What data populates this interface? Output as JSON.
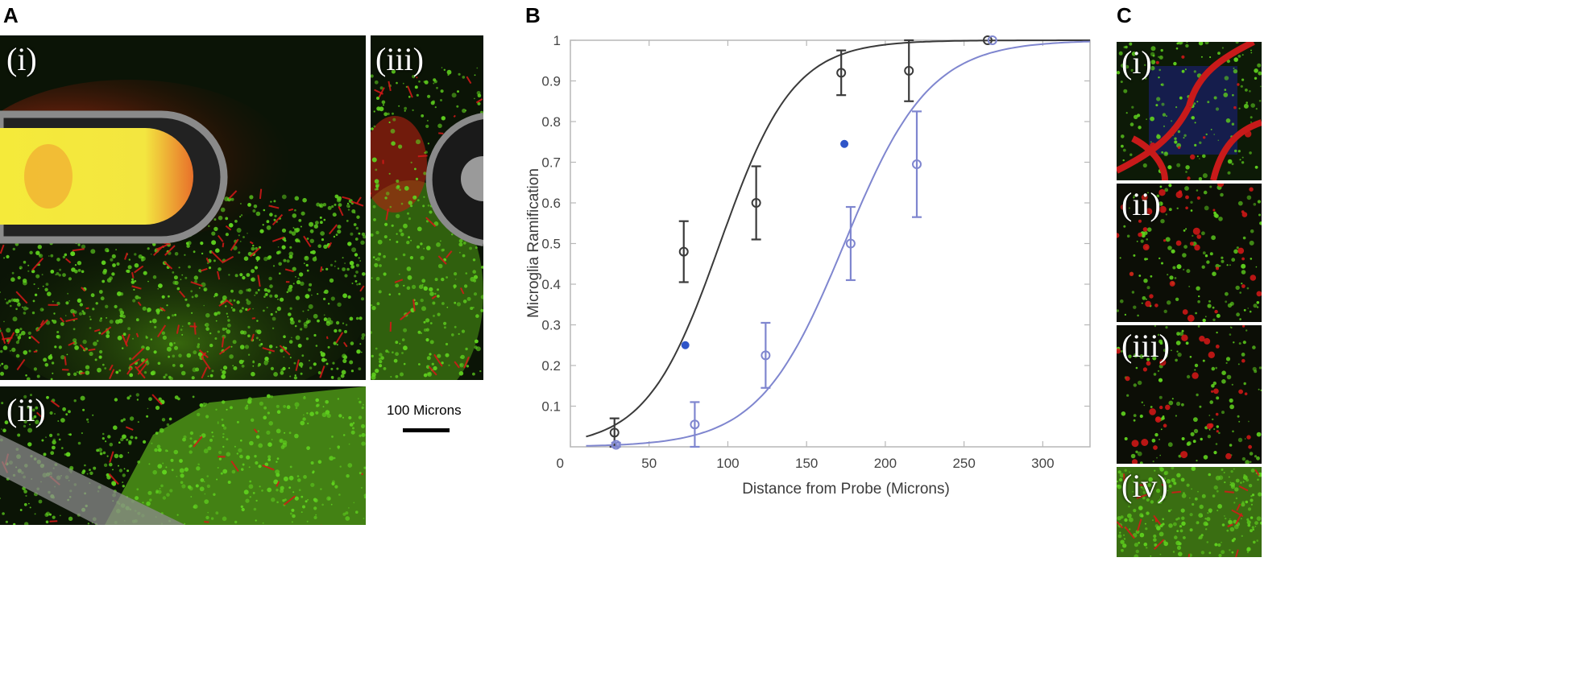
{
  "panel_letters": {
    "a": "A",
    "b": "B",
    "c": "C"
  },
  "panel_a": {
    "subpanels": {
      "i": "(i)",
      "ii": "(ii)",
      "iii": "(iii)"
    },
    "scale_bar_label": "100 Microns"
  },
  "panel_c": {
    "subpanels": {
      "i": "(i)",
      "ii": "(ii)",
      "iii": "(iii)",
      "iv": "(iv)"
    }
  },
  "colors": {
    "black_series": "#3a3a3a",
    "blue_series": "#7f86cf",
    "blue_marker": "#2f55c8",
    "micro_green": "#5fd11e",
    "micro_red": "#d81818",
    "probe_yellow": "#f5ea3a"
  },
  "chart_data": {
    "type": "scatter",
    "title": "",
    "xlabel": "Distance from Probe (Microns)",
    "ylabel": "Microglia Ramification",
    "xlim": [
      0,
      330
    ],
    "ylim": [
      0,
      1
    ],
    "x_ticks": [
      0,
      50,
      100,
      150,
      200,
      250,
      300
    ],
    "y_ticks": [
      0.1,
      0.2,
      0.3,
      0.4,
      0.5,
      0.6,
      0.7,
      0.8,
      0.9,
      1
    ],
    "x_tick_labels": [
      "0",
      "50",
      "100",
      "150",
      "200",
      "250",
      "300"
    ],
    "y_tick_labels": [
      "0.1",
      "0.2",
      "0.3",
      "0.4",
      "0.5",
      "0.6",
      "0.7",
      "0.8",
      "0.9",
      "1"
    ],
    "grid": false,
    "series": [
      {
        "color": "#3a3a3a",
        "marker": "circle",
        "points": [
          {
            "x": 28,
            "y": 0.035,
            "err": 0.035
          },
          {
            "x": 72,
            "y": 0.48,
            "err": 0.075
          },
          {
            "x": 118,
            "y": 0.6,
            "err": 0.09
          },
          {
            "x": 172,
            "y": 0.92,
            "err": 0.055
          },
          {
            "x": 215,
            "y": 0.925,
            "err": 0.075
          },
          {
            "x": 265,
            "y": 1.0,
            "err": 0
          }
        ],
        "fit": {
          "type": "logistic",
          "x0": 95,
          "k": 0.043,
          "x_from": 10,
          "x_to": 330
        }
      },
      {
        "color": "#7f86cf",
        "marker": "circle",
        "points": [
          {
            "x": 29,
            "y": 0.005,
            "err": 0.005
          },
          {
            "x": 79,
            "y": 0.055,
            "err": 0.055
          },
          {
            "x": 124,
            "y": 0.225,
            "err": 0.08
          },
          {
            "x": 178,
            "y": 0.5,
            "err": 0.09
          },
          {
            "x": 220,
            "y": 0.695,
            "err": 0.13
          },
          {
            "x": 268,
            "y": 1.0,
            "err": 0
          }
        ],
        "fit": {
          "type": "logistic",
          "x0": 174,
          "k": 0.037,
          "x_from": 10,
          "x_to": 330
        }
      }
    ],
    "extra_markers": [
      {
        "x": 73,
        "y": 0.25,
        "marker": "asterisk",
        "color": "#2f55c8"
      },
      {
        "x": 174,
        "y": 0.745,
        "marker": "asterisk",
        "color": "#2f55c8"
      }
    ]
  }
}
